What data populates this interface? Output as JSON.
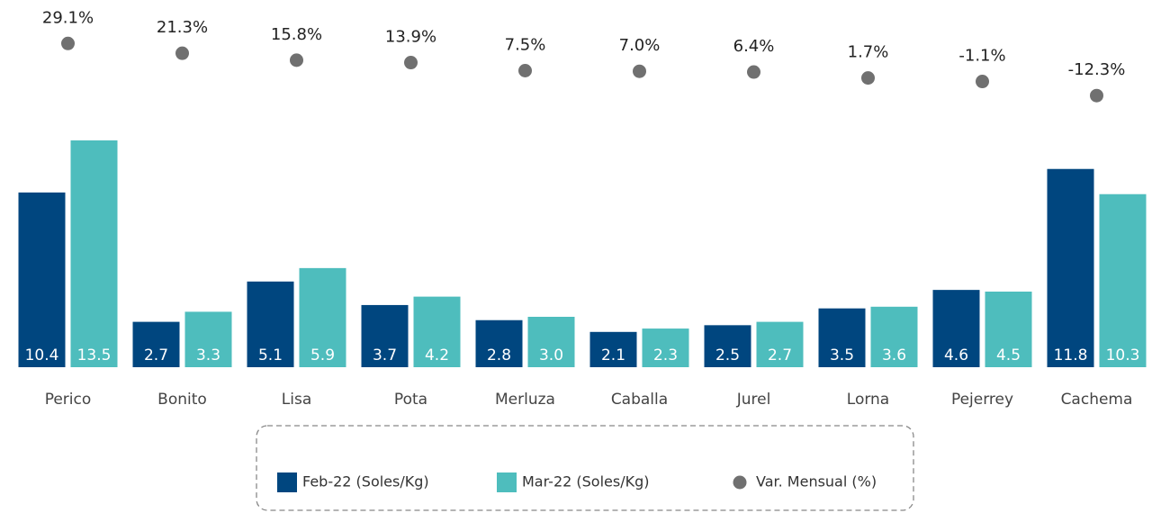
{
  "chart_data": {
    "type": "bar",
    "categories": [
      "Perico",
      "Bonito",
      "Lisa",
      "Pota",
      "Merluza",
      "Caballa",
      "Jurel",
      "Lorna",
      "Pejerrey",
      "Cachema"
    ],
    "series": [
      {
        "name": "Feb-22 (Soles/Kg)",
        "color": "#00467f",
        "values": [
          10.4,
          2.7,
          5.1,
          3.7,
          2.8,
          2.1,
          2.5,
          3.5,
          4.6,
          11.8
        ],
        "value_labels": [
          "10.4",
          "2.7",
          "5.1",
          "3.7",
          "2.8",
          "2.1",
          "2.5",
          "3.5",
          "4.6",
          "11.8"
        ]
      },
      {
        "name": "Mar-22 (Soles/Kg)",
        "color": "#4ebdbd",
        "values": [
          13.5,
          3.3,
          5.9,
          4.2,
          3.0,
          2.3,
          2.7,
          3.6,
          4.5,
          10.3
        ],
        "value_labels": [
          "13.5",
          "3.3",
          "5.9",
          "4.2",
          "3.0",
          "2.3",
          "2.7",
          "3.6",
          "4.5",
          "10.3"
        ]
      },
      {
        "name": "Var. Mensual (%)",
        "color": "#707070",
        "axis": "y2",
        "type": "scatter",
        "values": [
          29.1,
          21.3,
          15.8,
          13.9,
          7.5,
          7.0,
          6.4,
          1.7,
          -1.1,
          -12.3
        ],
        "value_labels": [
          "29.1%",
          "21.3%",
          "15.8%",
          "13.9%",
          "7.5%",
          "7.0%",
          "6.4%",
          "1.7%",
          "-1.1%",
          "-12.3%"
        ]
      }
    ],
    "ylim": [
      0,
      15
    ],
    "y2lim": [
      -20,
      35
    ],
    "grid": false,
    "legend": "bottom"
  }
}
